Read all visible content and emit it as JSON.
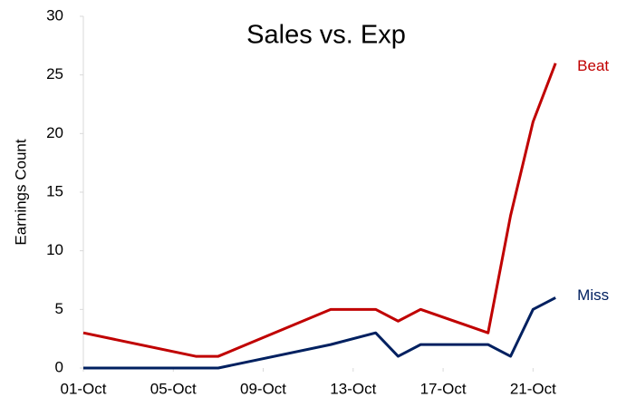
{
  "chart_data": {
    "type": "line",
    "title": "Sales vs. Exp",
    "y_label": "Earnings Count",
    "x": [
      1,
      6,
      7,
      12,
      14,
      15,
      16,
      19,
      20,
      21,
      22
    ],
    "series": [
      {
        "name": "Beat",
        "color": "#c00000",
        "values": [
          3,
          1,
          1,
          5,
          5,
          4,
          5,
          3,
          13,
          21,
          26
        ]
      },
      {
        "name": "Miss",
        "color": "#002060",
        "values": [
          0,
          0,
          0,
          2,
          3,
          1,
          2,
          2,
          1,
          5,
          6
        ]
      }
    ],
    "xlim": [
      1,
      23
    ],
    "xticks": [
      {
        "value": 1,
        "label": "01-Oct"
      },
      {
        "value": 5,
        "label": "05-Oct"
      },
      {
        "value": 9,
        "label": "09-Oct"
      },
      {
        "value": 13,
        "label": "13-Oct"
      },
      {
        "value": 17,
        "label": "17-Oct"
      },
      {
        "value": 21,
        "label": "21-Oct"
      }
    ],
    "ylim": [
      0,
      30
    ],
    "yticks": [
      0,
      5,
      10,
      15,
      20,
      25,
      30
    ],
    "grid": false
  }
}
